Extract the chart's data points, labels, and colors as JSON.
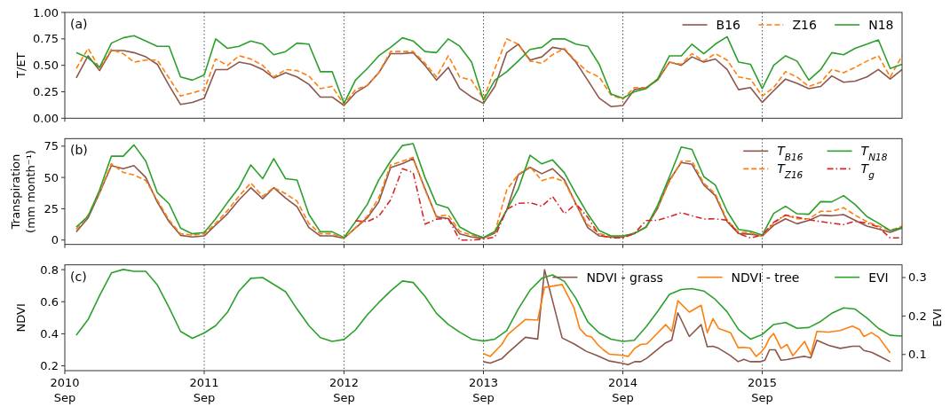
{
  "chart_data": [
    {
      "type": "line",
      "title": "(a)",
      "ylabel": "T/ET",
      "xlim": [
        "2010-09",
        "2016-09"
      ],
      "ylim": [
        0,
        1
      ],
      "yticks": [
        {
          "value": 0,
          "label": "0.00"
        },
        {
          "value": 0.25,
          "label": "0.25"
        },
        {
          "value": 0.5,
          "label": "0.50"
        },
        {
          "value": 0.75,
          "label": "0.75"
        },
        {
          "value": 1,
          "label": "1.00"
        }
      ],
      "xticks": [
        {
          "value": "2010-09",
          "label": null
        },
        {
          "value": "2011-09",
          "label": null
        },
        {
          "value": "2012-09",
          "label": null
        },
        {
          "value": "2013-09",
          "label": null
        },
        {
          "value": "2014-09",
          "label": null
        },
        {
          "value": "2015-09",
          "label": null
        }
      ],
      "tick_labels": "y",
      "legend": "top right",
      "ref_lines": [
        {
          "axis": "x",
          "value": "2011-09",
          "color": "#555555",
          "line_style": "dotted"
        },
        {
          "axis": "x",
          "value": "2012-09",
          "color": "#555555",
          "line_style": "dotted"
        },
        {
          "axis": "x",
          "value": "2013-09",
          "color": "#555555",
          "line_style": "dotted"
        },
        {
          "axis": "x",
          "value": "2014-09",
          "color": "#555555",
          "line_style": "dotted"
        },
        {
          "axis": "x",
          "value": "2015-09",
          "color": "#555555",
          "line_style": "dotted"
        }
      ],
      "x": [
        "2010-10",
        "2010-11",
        "2010-12",
        "2011-01",
        "2011-02",
        "2011-03",
        "2011-04",
        "2011-05",
        "2011-06",
        "2011-07",
        "2011-08",
        "2011-09",
        "2011-10",
        "2011-11",
        "2011-12",
        "2012-01",
        "2012-02",
        "2012-03",
        "2012-04",
        "2012-05",
        "2012-06",
        "2012-07",
        "2012-08",
        "2012-09",
        "2012-10",
        "2012-11",
        "2012-12",
        "2013-01",
        "2013-02",
        "2013-03",
        "2013-04",
        "2013-05",
        "2013-06",
        "2013-07",
        "2013-08",
        "2013-09",
        "2013-10",
        "2013-11",
        "2013-12",
        "2014-01",
        "2014-02",
        "2014-03",
        "2014-04",
        "2014-05",
        "2014-06",
        "2014-07",
        "2014-08",
        "2014-09",
        "2014-10",
        "2014-11",
        "2014-12",
        "2015-01",
        "2015-02",
        "2015-03",
        "2015-04",
        "2015-05",
        "2015-06",
        "2015-07",
        "2015-08",
        "2015-09",
        "2015-10",
        "2015-11",
        "2015-12",
        "2016-01",
        "2016-02",
        "2016-03",
        "2016-04",
        "2016-05",
        "2016-06",
        "2016-07",
        "2016-08",
        "2016-09"
      ],
      "series": [
        {
          "name": "B16",
          "color": "#8c564b",
          "line_style": "solid",
          "values": [
            0.38,
            0.59,
            0.45,
            0.64,
            0.64,
            0.62,
            0.58,
            0.51,
            0.31,
            0.13,
            0.15,
            0.19,
            0.46,
            0.46,
            0.53,
            0.51,
            0.46,
            0.38,
            0.43,
            0.39,
            0.32,
            0.2,
            0.2,
            0.12,
            0.24,
            0.31,
            0.43,
            0.61,
            0.61,
            0.62,
            0.5,
            0.36,
            0.48,
            0.28,
            0.2,
            0.14,
            0.3,
            0.62,
            0.7,
            0.55,
            0.58,
            0.67,
            0.65,
            0.53,
            0.36,
            0.19,
            0.11,
            0.12,
            0.27,
            0.29,
            0.36,
            0.53,
            0.5,
            0.58,
            0.53,
            0.56,
            0.46,
            0.27,
            0.29,
            0.15,
            0.26,
            0.37,
            0.33,
            0.28,
            0.3,
            0.4,
            0.34,
            0.35,
            0.39,
            0.46,
            0.37,
            0.46
          ]
        },
        {
          "name": "Z16",
          "color": "#ff7f0e",
          "line_style": "dashed",
          "values": [
            0.47,
            0.66,
            0.47,
            0.65,
            0.61,
            0.53,
            0.55,
            0.55,
            0.38,
            0.21,
            0.24,
            0.27,
            0.56,
            0.5,
            0.59,
            0.56,
            0.5,
            0.39,
            0.46,
            0.45,
            0.4,
            0.28,
            0.3,
            0.13,
            0.27,
            0.31,
            0.43,
            0.63,
            0.63,
            0.63,
            0.52,
            0.39,
            0.59,
            0.39,
            0.36,
            0.18,
            0.47,
            0.75,
            0.7,
            0.54,
            0.52,
            0.6,
            0.66,
            0.54,
            0.44,
            0.39,
            0.22,
            0.18,
            0.29,
            0.29,
            0.37,
            0.53,
            0.51,
            0.61,
            0.54,
            0.61,
            0.55,
            0.39,
            0.37,
            0.21,
            0.29,
            0.44,
            0.39,
            0.3,
            0.34,
            0.46,
            0.43,
            0.48,
            0.54,
            0.59,
            0.39,
            0.59
          ]
        },
        {
          "name": "N18",
          "color": "#2ca02c",
          "line_style": "solid",
          "values": [
            0.62,
            0.57,
            0.48,
            0.71,
            0.76,
            0.78,
            0.73,
            0.68,
            0.68,
            0.39,
            0.36,
            0.41,
            0.75,
            0.66,
            0.68,
            0.73,
            0.7,
            0.6,
            0.63,
            0.71,
            0.7,
            0.44,
            0.44,
            0.14,
            0.36,
            0.47,
            0.59,
            0.67,
            0.76,
            0.73,
            0.63,
            0.62,
            0.75,
            0.68,
            0.53,
            0.17,
            0.36,
            0.44,
            0.54,
            0.65,
            0.67,
            0.75,
            0.75,
            0.7,
            0.68,
            0.51,
            0.23,
            0.19,
            0.25,
            0.28,
            0.37,
            0.59,
            0.59,
            0.7,
            0.61,
            0.7,
            0.77,
            0.53,
            0.51,
            0.28,
            0.5,
            0.59,
            0.54,
            0.36,
            0.46,
            0.62,
            0.6,
            0.66,
            0.7,
            0.74,
            0.47,
            0.51
          ]
        }
      ]
    },
    {
      "type": "line",
      "title": "(b)",
      "ylabel": "Transpiration (mm month⁻¹)",
      "xlim": [
        "2010-09",
        "2016-09"
      ],
      "ylim": [
        -3.5,
        81
      ],
      "yticks": [
        0,
        25,
        50,
        75
      ],
      "xticks": [
        {
          "value": "2010-09",
          "label": null
        },
        {
          "value": "2011-09",
          "label": null
        },
        {
          "value": "2012-09",
          "label": null
        },
        {
          "value": "2013-09",
          "label": null
        },
        {
          "value": "2014-09",
          "label": null
        },
        {
          "value": "2015-09",
          "label": null
        }
      ],
      "tick_labels": "y",
      "legend": "top right",
      "ref_lines": [
        {
          "axis": "x",
          "value": "2011-09",
          "color": "#555555",
          "line_style": "dotted"
        },
        {
          "axis": "x",
          "value": "2012-09",
          "color": "#555555",
          "line_style": "dotted"
        },
        {
          "axis": "x",
          "value": "2013-09",
          "color": "#555555",
          "line_style": "dotted"
        },
        {
          "axis": "x",
          "value": "2014-09",
          "color": "#555555",
          "line_style": "dotted"
        },
        {
          "axis": "x",
          "value": "2015-09",
          "color": "#555555",
          "line_style": "dotted"
        }
      ],
      "x": [
        "2010-10",
        "2010-11",
        "2010-12",
        "2011-01",
        "2011-02",
        "2011-03",
        "2011-04",
        "2011-05",
        "2011-06",
        "2011-07",
        "2011-08",
        "2011-09",
        "2011-10",
        "2011-11",
        "2011-12",
        "2012-01",
        "2012-02",
        "2012-03",
        "2012-04",
        "2012-05",
        "2012-06",
        "2012-07",
        "2012-08",
        "2012-09",
        "2012-10",
        "2012-11",
        "2012-12",
        "2013-01",
        "2013-02",
        "2013-03",
        "2013-04",
        "2013-05",
        "2013-06",
        "2013-07",
        "2013-08",
        "2013-09",
        "2013-10",
        "2013-11",
        "2013-12",
        "2014-01",
        "2014-02",
        "2014-03",
        "2014-04",
        "2014-05",
        "2014-06",
        "2014-07",
        "2014-08",
        "2014-09",
        "2014-10",
        "2014-11",
        "2014-12",
        "2015-01",
        "2015-02",
        "2015-03",
        "2015-04",
        "2015-05",
        "2015-06",
        "2015-07",
        "2015-08",
        "2015-09",
        "2015-10",
        "2015-11",
        "2015-12",
        "2016-01",
        "2016-02",
        "2016-03",
        "2016-04",
        "2016-05",
        "2016-06",
        "2016-07",
        "2016-08",
        "2016-09"
      ],
      "series": [
        {
          "name": "T$_{B16}$",
          "color": "#8c564b",
          "line_style": "solid",
          "values": [
            6.6,
            17.7,
            37.5,
            59.5,
            57,
            59.5,
            50,
            30.4,
            14.7,
            3.8,
            2.5,
            3.3,
            12,
            21,
            32,
            41.8,
            33,
            41.8,
            33.5,
            26.6,
            10,
            3.3,
            3.3,
            1.5,
            9.6,
            17.7,
            30.4,
            57.8,
            61,
            65,
            41,
            18.5,
            17.2,
            5,
            2.5,
            1.5,
            5.7,
            24,
            52,
            58,
            53,
            57,
            48,
            29,
            10,
            3.3,
            2.4,
            2.4,
            5.2,
            10.4,
            25.3,
            47.8,
            62,
            60.5,
            44,
            35.5,
            14.7,
            5.2,
            4.7,
            3.3,
            11.8,
            17,
            13,
            15.8,
            19.9,
            19.4,
            20.3,
            15.8,
            11.1,
            8.8,
            6.2,
            9.5
          ]
        },
        {
          "name": "T$_{Z16}$",
          "color": "#ff7f0e",
          "line_style": "dashed",
          "values": [
            8.4,
            19.8,
            38,
            61,
            54,
            52,
            47.6,
            32,
            16,
            5,
            4,
            5,
            13.4,
            23.6,
            35,
            45.6,
            35,
            42,
            37,
            31,
            13.4,
            5,
            5,
            1.5,
            10,
            19,
            33.7,
            60,
            63,
            66,
            40,
            19,
            20,
            7,
            4,
            2,
            6.4,
            40,
            52.5,
            58.6,
            47.5,
            50,
            46.6,
            29,
            12.3,
            5.2,
            2.8,
            2.8,
            5.7,
            10.4,
            26.5,
            46.6,
            63,
            63,
            45.4,
            37,
            15.8,
            6.4,
            5.7,
            3.3,
            13.5,
            20,
            17,
            17,
            23,
            23,
            25.8,
            19.9,
            14.7,
            11.1,
            7.6,
            11.1
          ]
        },
        {
          "name": "T$_{N18}$",
          "color": "#2ca02c",
          "line_style": "solid",
          "values": [
            10.4,
            19,
            40,
            67,
            67,
            76,
            63,
            38,
            29,
            9.6,
            5,
            6,
            17,
            30,
            42,
            60,
            49,
            65,
            49,
            48,
            20.5,
            6.6,
            6.6,
            2,
            14.7,
            28.6,
            48,
            63,
            75.5,
            77,
            50,
            28.6,
            25.6,
            10.4,
            5.3,
            2,
            7,
            24,
            40.7,
            67.7,
            60.8,
            64,
            53.7,
            37,
            21,
            7.6,
            3.3,
            3.3,
            5.2,
            10.4,
            27.7,
            50.6,
            74.3,
            72.4,
            50.6,
            44,
            23,
            8.5,
            7,
            4,
            21.3,
            27,
            21,
            20.6,
            30.7,
            30.5,
            35.5,
            28.4,
            18.7,
            13.5,
            7.6,
            10
          ]
        },
        {
          "name": "T$_{g}$",
          "color": "#d62728",
          "line_style": "dashdot",
          "values": [
            null,
            null,
            null,
            null,
            null,
            null,
            null,
            null,
            null,
            null,
            null,
            null,
            null,
            null,
            null,
            null,
            null,
            null,
            null,
            null,
            null,
            null,
            null,
            null,
            15.5,
            14.7,
            19,
            32,
            57,
            54,
            12.7,
            16.7,
            17.2,
            0,
            0,
            0.8,
            2.4,
            24.6,
            29.3,
            29.8,
            27,
            34.8,
            21,
            29,
            18.2,
            4,
            1.7,
            1.7,
            5.2,
            15.6,
            15.8,
            18.7,
            21.8,
            19.4,
            16.8,
            17,
            15.8,
            5.2,
            1.7,
            4,
            14.2,
            19.9,
            18.2,
            16.3,
            14.7,
            13.5,
            12.3,
            15,
            13.5,
            10.4,
            1.7,
            1.7
          ]
        }
      ]
    },
    {
      "type": "line",
      "title": "(c)",
      "ylabel": "NDVI",
      "y2label": "EVI",
      "xlim": [
        "2010-09",
        "2016-09"
      ],
      "ylim": [
        0.17,
        0.83
      ],
      "yticks": [
        0.2,
        0.4,
        0.6,
        0.8
      ],
      "y2lim": [
        0.058,
        0.333
      ],
      "y2ticks": [
        0.1,
        0.2,
        0.3
      ],
      "xticks": [
        {
          "value": "2010-09",
          "label": "2010\nSep"
        },
        {
          "value": "2011-09",
          "label": "2011\nSep"
        },
        {
          "value": "2012-09",
          "label": "2012\nSep"
        },
        {
          "value": "2013-09",
          "label": "2013\nSep"
        },
        {
          "value": "2014-09",
          "label": "2014\nSep"
        },
        {
          "value": "2015-09",
          "label": "2015\nSep"
        }
      ],
      "legend": "top right",
      "ref_lines": [
        {
          "axis": "x",
          "value": "2011-09",
          "color": "#555555",
          "line_style": "dotted"
        },
        {
          "axis": "x",
          "value": "2012-09",
          "color": "#555555",
          "line_style": "dotted"
        },
        {
          "axis": "x",
          "value": "2013-09",
          "color": "#555555",
          "line_style": "dotted"
        },
        {
          "axis": "x",
          "value": "2014-09",
          "color": "#555555",
          "line_style": "dotted"
        },
        {
          "axis": "x",
          "value": "2015-09",
          "color": "#555555",
          "line_style": "dotted"
        }
      ],
      "x": [
        "2010-10",
        "2010-11",
        "2010-12",
        "2011-01",
        "2011-02",
        "2011-03",
        "2011-04",
        "2011-05",
        "2011-06",
        "2011-07",
        "2011-08",
        "2011-09",
        "2011-10",
        "2011-11",
        "2011-12",
        "2012-01",
        "2012-02",
        "2012-03",
        "2012-04",
        "2012-05",
        "2012-06",
        "2012-07",
        "2012-08",
        "2012-09",
        "2012-10",
        "2012-11",
        "2012-12",
        "2013-01",
        "2013-02",
        "2013-03",
        "2013-04",
        "2013-05",
        "2013-06",
        "2013-07",
        "2013-08",
        "2013-09",
        "2013-10",
        "2013-11",
        "2013-12",
        "2014-01",
        "2014-02",
        "2014-03",
        "2014-04",
        "2014-05",
        "2014-06",
        "2014-07",
        "2014-08",
        "2014-09",
        "2014-10",
        "2014-11",
        "2014-12",
        "2015-01",
        "2015-02",
        "2015-03",
        "2015-04",
        "2015-05",
        "2015-06",
        "2015-07",
        "2015-08",
        "2015-09",
        "2015-10",
        "2015-11",
        "2015-12",
        "2016-01",
        "2016-02",
        "2016-03",
        "2016-04",
        "2016-05",
        "2016-06",
        "2016-07",
        "2016-08",
        "2016-09"
      ],
      "series": [
        {
          "name": "NDVI - grass",
          "color": "#8c564b",
          "line_style": "solid",
          "x": [
            "2013-09-01",
            "2013-09-19",
            "2013-10-19",
            "2013-11-04",
            "2013-12-20",
            "2014-01-21",
            "2014-02-08",
            "2014-03-26",
            "2014-04-26",
            "2014-05-28",
            "2014-06-27",
            "2014-07-28",
            "2014-08-28",
            "2014-09-15",
            "2014-10-02",
            "2014-10-18",
            "2014-11-03",
            "2014-11-30",
            "2014-12-22",
            "2015-01-07",
            "2015-01-23",
            "2015-02-22",
            "2015-03-25",
            "2015-04-10",
            "2015-04-25",
            "2015-05-10",
            "2015-06-10",
            "2015-06-30",
            "2015-07-15",
            "2015-07-31",
            "2015-08-27",
            "2015-09-08",
            "2015-09-20",
            "2015-10-05",
            "2015-10-20",
            "2015-11-05",
            "2015-12-06",
            "2015-12-21",
            "2016-01-06",
            "2016-01-22",
            "2016-02-22",
            "2016-03-23",
            "2016-04-24",
            "2016-05-13",
            "2016-05-24",
            "2016-06-13",
            "2016-07-02",
            "2016-08-01"
          ],
          "values": [
            0.226,
            0.217,
            0.244,
            0.281,
            0.378,
            0.367,
            0.8,
            0.374,
            0.337,
            0.291,
            0.263,
            0.23,
            0.217,
            0.207,
            0.226,
            0.226,
            0.248,
            0.3,
            0.343,
            0.361,
            0.531,
            0.383,
            0.457,
            0.319,
            0.322,
            0.309,
            0.263,
            0.226,
            0.241,
            0.226,
            0.226,
            0.235,
            0.3,
            0.3,
            0.235,
            0.239,
            0.254,
            0.259,
            0.25,
            0.359,
            0.328,
            0.309,
            0.322,
            0.322,
            0.296,
            0.285,
            0.263,
            0.226
          ]
        },
        {
          "name": "NDVI - tree",
          "color": "#ff7f0e",
          "line_style": "solid",
          "x": [
            "2013-09-01",
            "2013-09-19",
            "2013-10-19",
            "2013-11-04",
            "2013-12-20",
            "2014-01-21",
            "2014-02-08",
            "2014-03-26",
            "2014-04-26",
            "2014-05-11",
            "2014-05-28",
            "2014-06-11",
            "2014-06-27",
            "2014-07-12",
            "2014-07-28",
            "2014-08-28",
            "2014-09-15",
            "2014-10-02",
            "2014-10-18",
            "2014-11-03",
            "2014-11-30",
            "2014-12-22",
            "2015-01-07",
            "2015-01-23",
            "2015-02-22",
            "2015-03-25",
            "2015-04-10",
            "2015-04-25",
            "2015-05-10",
            "2015-06-10",
            "2015-06-30",
            "2015-07-15",
            "2015-07-31",
            "2015-08-16",
            "2015-08-27",
            "2015-09-08",
            "2015-09-20",
            "2015-10-01",
            "2015-10-20",
            "2015-11-05",
            "2015-11-20",
            "2015-12-21",
            "2016-01-06",
            "2016-01-22",
            "2016-02-22",
            "2016-03-23",
            "2016-04-24",
            "2016-05-13",
            "2016-05-24",
            "2016-06-13",
            "2016-07-02",
            "2016-08-01"
          ],
          "values": [
            0.276,
            0.259,
            0.333,
            0.396,
            0.489,
            0.485,
            0.689,
            0.707,
            0.563,
            0.433,
            0.389,
            0.38,
            0.333,
            0.3,
            0.272,
            0.267,
            0.259,
            0.309,
            0.333,
            0.337,
            0.402,
            0.457,
            0.415,
            0.606,
            0.535,
            0.578,
            0.407,
            0.494,
            0.433,
            0.407,
            0.313,
            0.315,
            0.311,
            0.259,
            0.281,
            0.315,
            0.374,
            0.402,
            0.309,
            0.333,
            0.263,
            0.352,
            0.269,
            0.415,
            0.411,
            0.42,
            0.448,
            0.426,
            0.383,
            0.407,
            0.378,
            0.281
          ]
        },
        {
          "name": "EVI",
          "color": "#2ca02c",
          "line_style": "solid",
          "axis": "y2",
          "values": [
            0.15,
            0.191,
            0.253,
            0.312,
            0.321,
            0.316,
            0.316,
            0.281,
            0.222,
            0.16,
            0.142,
            0.156,
            0.175,
            0.21,
            0.265,
            0.298,
            0.3,
            0.282,
            0.263,
            0.218,
            0.175,
            0.144,
            0.134,
            0.139,
            0.164,
            0.203,
            0.235,
            0.265,
            0.291,
            0.287,
            0.251,
            0.207,
            0.178,
            0.158,
            0.14,
            0.135,
            0.14,
            0.162,
            0.218,
            0.267,
            0.298,
            0.307,
            0.29,
            0.246,
            0.185,
            0.156,
            0.14,
            0.134,
            0.137,
            0.172,
            0.212,
            0.256,
            0.269,
            0.271,
            0.265,
            0.243,
            0.211,
            0.165,
            0.14,
            0.152,
            0.178,
            0.183,
            0.168,
            0.17,
            0.186,
            0.207,
            0.221,
            0.218,
            0.195,
            0.168,
            0.15,
            0.148
          ]
        }
      ]
    }
  ]
}
